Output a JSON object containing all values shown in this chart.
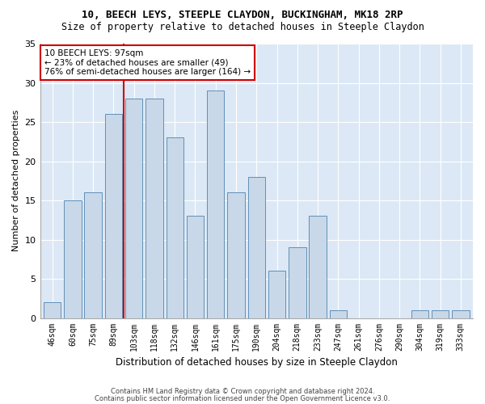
{
  "title1": "10, BEECH LEYS, STEEPLE CLAYDON, BUCKINGHAM, MK18 2RP",
  "title2": "Size of property relative to detached houses in Steeple Claydon",
  "xlabel": "Distribution of detached houses by size in Steeple Claydon",
  "ylabel": "Number of detached properties",
  "categories": [
    "46sqm",
    "60sqm",
    "75sqm",
    "89sqm",
    "103sqm",
    "118sqm",
    "132sqm",
    "146sqm",
    "161sqm",
    "175sqm",
    "190sqm",
    "204sqm",
    "218sqm",
    "233sqm",
    "247sqm",
    "261sqm",
    "276sqm",
    "290sqm",
    "304sqm",
    "319sqm",
    "333sqm"
  ],
  "values": [
    2,
    15,
    16,
    26,
    28,
    28,
    23,
    13,
    29,
    16,
    18,
    6,
    9,
    13,
    1,
    0,
    0,
    0,
    1,
    1,
    1
  ],
  "bar_color": "#c8d8e8",
  "bar_edge_color": "#6090b8",
  "vline_x_index": 3.5,
  "vline_color": "#cc0000",
  "annotation_line1": "10 BEECH LEYS: 97sqm",
  "annotation_line2": "← 23% of detached houses are smaller (49)",
  "annotation_line3": "76% of semi-detached houses are larger (164) →",
  "annotation_box_color": "#ffffff",
  "annotation_box_edge": "#cc0000",
  "ylim": [
    0,
    35
  ],
  "yticks": [
    0,
    5,
    10,
    15,
    20,
    25,
    30,
    35
  ],
  "background_color": "#dce8f5",
  "footer1": "Contains HM Land Registry data © Crown copyright and database right 2024.",
  "footer2": "Contains public sector information licensed under the Open Government Licence v3.0.",
  "title1_fontsize": 9,
  "title2_fontsize": 8.5,
  "ylabel_fontsize": 8,
  "xlabel_fontsize": 8.5,
  "tick_fontsize": 7,
  "annotation_fontsize": 7.5,
  "footer_fontsize": 6
}
